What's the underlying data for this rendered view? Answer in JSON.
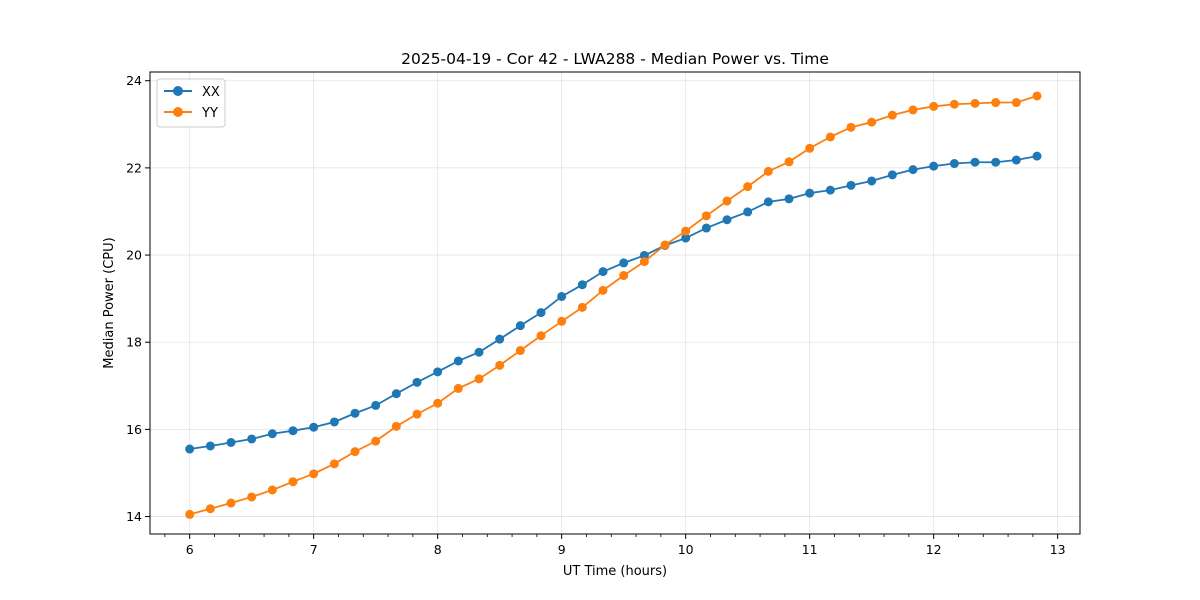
{
  "chart_data": {
    "type": "line",
    "title": "2025-04-19 - Cor 42 - LWA288 - Median Power vs. Time",
    "xlabel": "UT Time (hours)",
    "ylabel": "Median Power (CPU)",
    "xlim": [
      5.68,
      13.18
    ],
    "ylim": [
      13.6,
      24.2
    ],
    "xticks": [
      6,
      7,
      8,
      9,
      10,
      11,
      12,
      13
    ],
    "yticks": [
      14,
      16,
      18,
      20,
      22,
      24
    ],
    "x_minor_step": 0.2,
    "grid": true,
    "legend_position": "upper-left",
    "x": [
      6.0,
      6.1667,
      6.3333,
      6.5,
      6.6667,
      6.8333,
      7.0,
      7.1667,
      7.3333,
      7.5,
      7.6667,
      7.8333,
      8.0,
      8.1667,
      8.3333,
      8.5,
      8.6667,
      8.8333,
      9.0,
      9.1667,
      9.3333,
      9.5,
      9.6667,
      9.8333,
      10.0,
      10.1667,
      10.3333,
      10.5,
      10.6667,
      10.8333,
      11.0,
      11.1667,
      11.3333,
      11.5,
      11.6667,
      11.8333,
      12.0,
      12.1667,
      12.3333,
      12.5,
      12.6667,
      12.8333
    ],
    "series": [
      {
        "name": "XX",
        "color": "#1f77b4",
        "values": [
          15.55,
          15.62,
          15.7,
          15.78,
          15.9,
          15.97,
          16.05,
          16.17,
          16.37,
          16.55,
          16.82,
          17.08,
          17.32,
          17.57,
          17.77,
          18.07,
          18.38,
          18.68,
          19.05,
          19.32,
          19.62,
          19.82,
          19.99,
          20.22,
          20.39,
          20.62,
          20.81,
          20.99,
          21.22,
          21.29,
          21.42,
          21.49,
          21.6,
          21.7,
          21.84,
          21.96,
          22.04,
          22.1,
          22.13,
          22.13,
          22.18,
          22.27
        ]
      },
      {
        "name": "YY",
        "color": "#ff7f0e",
        "values": [
          14.05,
          14.18,
          14.31,
          14.45,
          14.61,
          14.8,
          14.98,
          15.21,
          15.49,
          15.73,
          16.07,
          16.35,
          16.6,
          16.94,
          17.16,
          17.47,
          17.81,
          18.15,
          18.48,
          18.8,
          19.19,
          19.53,
          19.85,
          20.23,
          20.55,
          20.9,
          21.24,
          21.57,
          21.92,
          22.14,
          22.45,
          22.71,
          22.93,
          23.05,
          23.21,
          23.33,
          23.41,
          23.46,
          23.48,
          23.5,
          23.5,
          23.65
        ]
      }
    ]
  }
}
